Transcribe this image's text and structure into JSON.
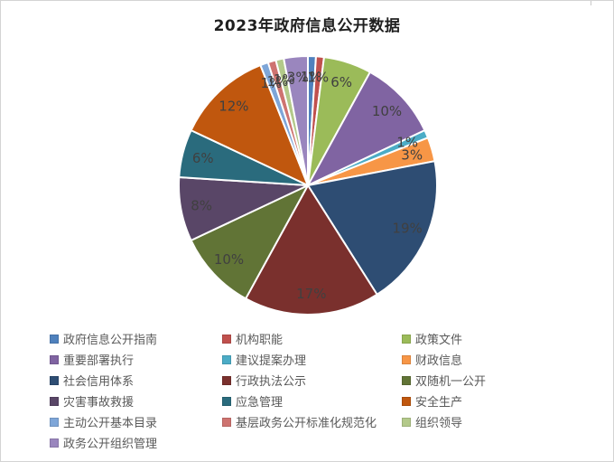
{
  "title": "2023年政府信息公开数据",
  "frame": {
    "background": "#ffffff",
    "border_color": "#d4d4d4"
  },
  "chart_data": {
    "type": "pie",
    "title": "2023年政府信息公开数据",
    "categories": [
      "政府信息公开指南",
      "机构职能",
      "政策文件",
      "重要部署执行",
      "建议提案办理",
      "财政信息",
      "社会信用体系",
      "行政执法公示",
      "双随机一公开",
      "灾害事故救援",
      "应急管理",
      "安全生产",
      "主动公开基本目录",
      "基层政务公开标准化规范化",
      "组织领导",
      "政务公开组织管理"
    ],
    "values": [
      1,
      1,
      6,
      10,
      1,
      3,
      19,
      17,
      10,
      8,
      6,
      12,
      1,
      1,
      1,
      3
    ],
    "labels": [
      "1%",
      "1%",
      "6%",
      "10%",
      "1%",
      "3%",
      "19%",
      "17%",
      "10%",
      "8%",
      "6%",
      "12%",
      "1%",
      "1%",
      "1%",
      "3%"
    ],
    "colors": [
      "#4F81BD",
      "#C0504D",
      "#9BBB59",
      "#8064A2",
      "#4BACC6",
      "#F79646",
      "#2E4D73",
      "#7A302D",
      "#617436",
      "#594667",
      "#2A6B7D",
      "#C0570E",
      "#7EA6D8",
      "#CE7370",
      "#B3C98A",
      "#9A86BE"
    ],
    "start_angle_deg": 0,
    "direction": "clockwise",
    "slice_border_color": "#ffffff",
    "data_label_color": "#404040",
    "legend_position": "bottom",
    "legend_columns": 3,
    "legend_text_color": "#595959"
  }
}
